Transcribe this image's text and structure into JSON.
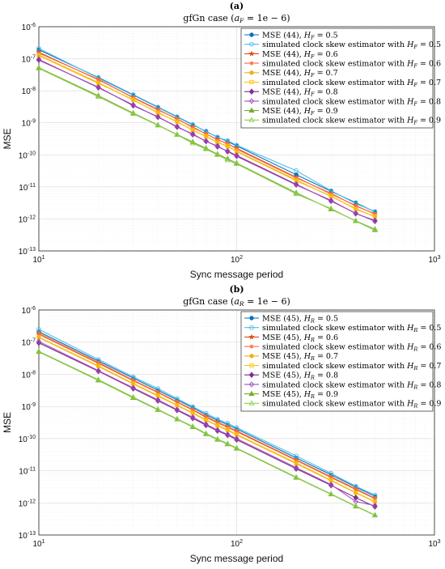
{
  "chart_data": [
    {
      "type": "line",
      "panel_letter": "(a)",
      "title": "gfGn case (a_F = 1e − 6)",
      "title_parts": {
        "prefix": "gfGn case (",
        "sym": "a",
        "sub": "F",
        "suffix": " = 1e − 6)"
      },
      "xlabel": "Sync message period",
      "ylabel": "MSE",
      "xscale": "log",
      "yscale": "log",
      "xlim": [
        10,
        1000
      ],
      "ylim": [
        1e-13,
        1e-06
      ],
      "x_ticks": [
        {
          "base": "10",
          "exp": "1"
        },
        {
          "base": "10",
          "exp": "2"
        },
        {
          "base": "10",
          "exp": "3"
        }
      ],
      "y_ticks": [
        {
          "base": "10",
          "exp": "-13"
        },
        {
          "base": "10",
          "exp": "-12"
        },
        {
          "base": "10",
          "exp": "-11"
        },
        {
          "base": "10",
          "exp": "-10"
        },
        {
          "base": "10",
          "exp": "-9"
        },
        {
          "base": "10",
          "exp": "-8"
        },
        {
          "base": "10",
          "exp": "-7"
        },
        {
          "base": "10",
          "exp": "-6"
        }
      ],
      "grid": true,
      "legend_position": "top-right",
      "x": [
        10,
        20,
        30,
        40,
        50,
        60,
        70,
        80,
        90,
        100,
        200,
        300,
        400,
        500
      ],
      "series": [
        {
          "name": "MSE (44), H_F = 0.5",
          "label": {
            "pre": "MSE (44), ",
            "sym": "H",
            "sub": "F",
            "post": " = 0.5"
          },
          "color": "#0072BD",
          "marker": "dot",
          "values": [
            1.9e-07,
            2.6e-08,
            7.5e-09,
            3.1e-09,
            1.55e-09,
            8.8e-10,
            5.3e-10,
            3.6e-10,
            2.6e-10,
            1.9e-10,
            2.4e-11,
            7.3e-12,
            3.2e-12,
            1.65e-12
          ]
        },
        {
          "name": "simulated clock skew estimator with H_F = 0.5",
          "label": {
            "pre": "simulated clock skew estimator with ",
            "sym": "H",
            "sub": "F",
            "post": " = 0.5"
          },
          "color": "#4DBEEE",
          "marker": "circle",
          "values": [
            2.1e-07,
            2.5e-08,
            7.2e-09,
            3e-09,
            1.5e-09,
            8.5e-10,
            5.5e-10,
            3.5e-10,
            2.8e-10,
            2e-10,
            3.2e-11,
            7.6e-12,
            3e-12,
            1.7e-12
          ]
        },
        {
          "name": "MSE (44), H_F = 0.6",
          "label": {
            "pre": "MSE (44), ",
            "sym": "H",
            "sub": "F",
            "post": " = 0.6"
          },
          "color": "#D95319",
          "marker": "star",
          "values": [
            1.6e-07,
            2.2e-08,
            6.2e-09,
            2.6e-09,
            1.3e-09,
            7.4e-10,
            4.5e-10,
            3e-10,
            2.2e-10,
            1.6e-10,
            2e-11,
            6e-12,
            2.6e-12,
            1.4e-12
          ]
        },
        {
          "name": "simulated clock skew estimator with H_F = 0.6",
          "label": {
            "pre": "simulated clock skew estimator with ",
            "sym": "H",
            "sub": "F",
            "post": " = 0.6"
          },
          "color": "#FF6A3D",
          "marker": "asterisk",
          "values": [
            1.5e-07,
            2.3e-08,
            6e-09,
            2.5e-09,
            1.35e-09,
            7e-10,
            4.6e-10,
            2.9e-10,
            2.3e-10,
            1.5e-10,
            1.9e-11,
            6.3e-12,
            2.5e-12,
            1.45e-12
          ]
        },
        {
          "name": "MSE (44), H_F = 0.7",
          "label": {
            "pre": "MSE (44), ",
            "sym": "H",
            "sub": "F",
            "post": " = 0.7"
          },
          "color": "#EDB120",
          "marker": "dot",
          "values": [
            1.3e-07,
            1.8e-08,
            5.1e-09,
            2.1e-09,
            1.06e-09,
            6e-10,
            3.7e-10,
            2.5e-10,
            1.8e-10,
            1.3e-10,
            1.65e-11,
            5e-12,
            2.1e-12,
            1.15e-12
          ]
        },
        {
          "name": "simulated clock skew estimator with H_F = 0.7",
          "label": {
            "pre": "simulated clock skew estimator with ",
            "sym": "H",
            "sub": "F",
            "post": " = 0.7"
          },
          "color": "#FFC107",
          "marker": "square",
          "values": [
            1.25e-07,
            1.7e-08,
            5.3e-09,
            2e-09,
            1.1e-09,
            5.8e-10,
            3.8e-10,
            2.4e-10,
            1.9e-10,
            1.25e-10,
            1.55e-11,
            5.2e-12,
            2e-12,
            1.2e-12
          ]
        },
        {
          "name": "MSE (44), H_F = 0.8",
          "label": {
            "pre": "MSE (44), ",
            "sym": "H",
            "sub": "F",
            "post": " = 0.8"
          },
          "color": "#7E2F8E",
          "marker": "diamond",
          "values": [
            9.5e-08,
            1.25e-08,
            3.6e-09,
            1.5e-09,
            7.6e-10,
            4.3e-10,
            2.7e-10,
            1.8e-10,
            1.3e-10,
            9.5e-11,
            1.2e-11,
            3.6e-12,
            1.5e-12,
            8.5e-13
          ]
        },
        {
          "name": "simulated clock skew estimator with H_F = 0.8",
          "label": {
            "pre": "simulated clock skew estimator with ",
            "sym": "H",
            "sub": "F",
            "post": " = 0.8"
          },
          "color": "#A64DBF",
          "marker": "diamond-open",
          "values": [
            9e-08,
            1.3e-08,
            3.4e-09,
            1.55e-09,
            7.3e-10,
            4.5e-10,
            2.6e-10,
            1.9e-10,
            1.25e-10,
            9e-11,
            1.15e-11,
            3.8e-12,
            1.45e-12,
            9e-13
          ]
        },
        {
          "name": "MSE (44), H_F = 0.9",
          "label": {
            "pre": "MSE (44), ",
            "sym": "H",
            "sub": "F",
            "post": " = 0.9"
          },
          "color": "#77AC30",
          "marker": "triangle",
          "values": [
            5.2e-08,
            7e-09,
            2e-09,
            8.5e-10,
            4.3e-10,
            2.5e-10,
            1.6e-10,
            1.05e-10,
            7.5e-11,
            5.5e-11,
            6.5e-12,
            2e-12,
            8.7e-13,
            4.7e-13
          ]
        },
        {
          "name": "simulated clock skew estimator with H_F = 0.9",
          "label": {
            "pre": "simulated clock skew estimator with ",
            "sym": "H",
            "sub": "F",
            "post": " = 0.9"
          },
          "color": "#8FD14F",
          "marker": "triangle-open",
          "values": [
            5e-08,
            6.5e-09,
            1.9e-09,
            8.3e-10,
            4.2e-10,
            2.3e-10,
            1.5e-10,
            1e-10,
            6.8e-11,
            5.2e-11,
            6e-12,
            2.1e-12,
            8.5e-13,
            4.4e-13
          ]
        }
      ]
    },
    {
      "type": "line",
      "panel_letter": "(b)",
      "title": "gfGn case (a_R = 1e − 6)",
      "title_parts": {
        "prefix": "gfGn case (",
        "sym": "a",
        "sub": "R",
        "suffix": " = 1e − 6)"
      },
      "xlabel": "Sync message period",
      "ylabel": "MSE",
      "xscale": "log",
      "yscale": "log",
      "xlim": [
        10,
        1000
      ],
      "ylim": [
        1e-13,
        1e-06
      ],
      "x_ticks": [
        {
          "base": "10",
          "exp": "1"
        },
        {
          "base": "10",
          "exp": "2"
        },
        {
          "base": "10",
          "exp": "3"
        }
      ],
      "y_ticks": [
        {
          "base": "10",
          "exp": "-13"
        },
        {
          "base": "10",
          "exp": "-12"
        },
        {
          "base": "10",
          "exp": "-11"
        },
        {
          "base": "10",
          "exp": "-10"
        },
        {
          "base": "10",
          "exp": "-9"
        },
        {
          "base": "10",
          "exp": "-8"
        },
        {
          "base": "10",
          "exp": "-7"
        },
        {
          "base": "10",
          "exp": "-6"
        }
      ],
      "grid": true,
      "legend_position": "top-right",
      "x": [
        10,
        20,
        30,
        40,
        50,
        60,
        70,
        80,
        90,
        100,
        200,
        300,
        400,
        500
      ],
      "series": [
        {
          "name": "MSE (45), H_R = 0.5",
          "label": {
            "pre": "MSE (45), ",
            "sym": "H",
            "sub": "R",
            "post": " = 0.5"
          },
          "color": "#0072BD",
          "marker": "dot",
          "values": [
            2.1e-07,
            2.6e-08,
            7.6e-09,
            3.2e-09,
            1.6e-09,
            9.2e-10,
            5.5e-10,
            3.7e-10,
            2.7e-10,
            2e-10,
            2.5e-11,
            7.5e-12,
            3.1e-12,
            1.6e-12
          ]
        },
        {
          "name": "simulated clock skew estimator with H_R = 0.5",
          "label": {
            "pre": "simulated clock skew estimator with ",
            "sym": "H",
            "sub": "R",
            "post": " = 0.5"
          },
          "color": "#4DBEEE",
          "marker": "circle",
          "values": [
            2.5e-07,
            2.9e-08,
            8.3e-09,
            3.6e-09,
            1.75e-09,
            9.8e-10,
            6.1e-10,
            4e-10,
            3e-10,
            2.2e-10,
            2.9e-11,
            8.3e-12,
            3.3e-12,
            1.75e-12
          ]
        },
        {
          "name": "MSE (45), H_R = 0.6",
          "label": {
            "pre": "MSE (45), ",
            "sym": "H",
            "sub": "R",
            "post": " = 0.6"
          },
          "color": "#D95319",
          "marker": "star",
          "values": [
            1.75e-07,
            2.2e-08,
            6.3e-09,
            2.7e-09,
            1.35e-09,
            7.7e-10,
            4.6e-10,
            3.1e-10,
            2.25e-10,
            1.65e-10,
            2.1e-11,
            6.2e-12,
            2.6e-12,
            1.35e-12
          ]
        },
        {
          "name": "simulated clock skew estimator with H_R = 0.6",
          "label": {
            "pre": "simulated clock skew estimator with ",
            "sym": "H",
            "sub": "R",
            "post": " = 0.6"
          },
          "color": "#FF6A3D",
          "marker": "asterisk",
          "values": [
            1.9e-07,
            2.35e-08,
            6.6e-09,
            2.8e-09,
            1.4e-09,
            8e-10,
            4.9e-10,
            3.25e-10,
            2.35e-10,
            1.75e-10,
            2.2e-11,
            6.5e-12,
            2.75e-12,
            1.4e-12
          ]
        },
        {
          "name": "MSE (45), H_R = 0.7",
          "label": {
            "pre": "MSE (45), ",
            "sym": "H",
            "sub": "R",
            "post": " = 0.7"
          },
          "color": "#EDB120",
          "marker": "dot",
          "values": [
            1.4e-07,
            1.75e-08,
            5e-09,
            2.1e-09,
            1.07e-09,
            6.1e-10,
            3.7e-10,
            2.5e-10,
            1.8e-10,
            1.3e-10,
            1.65e-11,
            4.9e-12,
            2.05e-12,
            1.07e-12
          ]
        },
        {
          "name": "simulated clock skew estimator with H_R = 0.7",
          "label": {
            "pre": "simulated clock skew estimator with ",
            "sym": "H",
            "sub": "R",
            "post": " = 0.7"
          },
          "color": "#FFC107",
          "marker": "square",
          "values": [
            1.45e-07,
            1.85e-08,
            5.2e-09,
            2.2e-09,
            1.1e-09,
            6.4e-10,
            3.85e-10,
            2.6e-10,
            1.9e-10,
            1.35e-10,
            1.75e-11,
            5.1e-12,
            2.1e-12,
            1.1e-12
          ]
        },
        {
          "name": "MSE (45), H_R = 0.8",
          "label": {
            "pre": "MSE (45), ",
            "sym": "H",
            "sub": "R",
            "post": " = 0.8"
          },
          "color": "#7E2F8E",
          "marker": "diamond",
          "values": [
            9.5e-08,
            1.25e-08,
            3.6e-09,
            1.5e-09,
            7.6e-10,
            4.3e-10,
            2.6e-10,
            1.75e-10,
            1.28e-10,
            9.2e-11,
            1.15e-11,
            3.5e-12,
            1.45e-12,
            7.6e-13
          ]
        },
        {
          "name": "simulated clock skew estimator with H_R = 0.8",
          "label": {
            "pre": "simulated clock skew estimator with ",
            "sym": "H",
            "sub": "R",
            "post": " = 0.8"
          },
          "color": "#A64DBF",
          "marker": "diamond-open",
          "values": [
            1.05e-07,
            1.3e-08,
            3.8e-09,
            1.6e-09,
            8e-10,
            4.6e-10,
            2.8e-10,
            1.85e-10,
            1.35e-10,
            1e-10,
            1.25e-11,
            3.7e-12,
            1.1e-12,
            8.2e-13
          ]
        },
        {
          "name": "MSE (45), H_R = 0.9",
          "label": {
            "pre": "MSE (45), ",
            "sym": "H",
            "sub": "R",
            "post": " = 0.9"
          },
          "color": "#77AC30",
          "marker": "triangle",
          "values": [
            5e-08,
            6.5e-09,
            1.85e-09,
            7.8e-10,
            4e-10,
            2.3e-10,
            1.38e-10,
            9.3e-11,
            6.7e-11,
            4.9e-11,
            6.1e-12,
            1.85e-12,
            7.8e-13,
            4.1e-13
          ]
        },
        {
          "name": "simulated clock skew estimator with H_R = 0.9",
          "label": {
            "pre": "simulated clock skew estimator with ",
            "sym": "H",
            "sub": "R",
            "post": " = 0.9"
          },
          "color": "#8FD14F",
          "marker": "triangle-open",
          "values": [
            5.2e-08,
            6.8e-09,
            1.95e-09,
            8.1e-10,
            4.1e-10,
            2.4e-10,
            1.45e-10,
            9.7e-11,
            7e-11,
            5.1e-11,
            6.3e-12,
            1.9e-12,
            8e-13,
            4.2e-13
          ]
        }
      ]
    }
  ]
}
